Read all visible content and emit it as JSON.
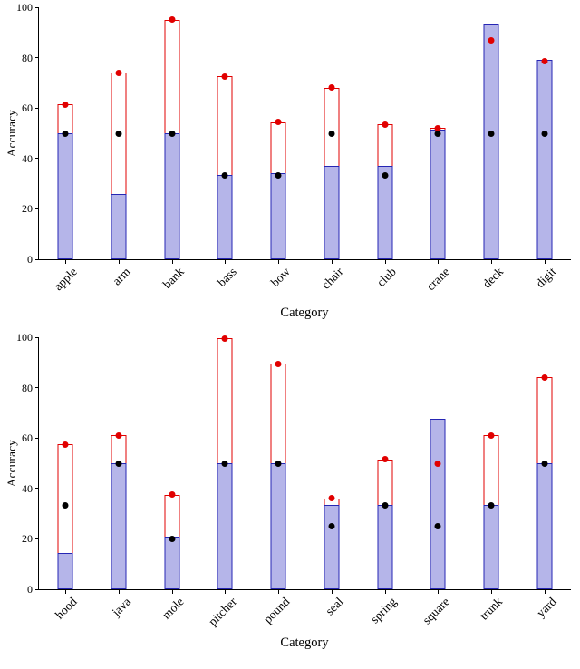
{
  "colors": {
    "bar_fill": "#b5b5e9",
    "bar_border": "#2626b4",
    "highlight": "#e10000",
    "marker": "#000000",
    "axis": "#000000"
  },
  "chart_data": [
    {
      "type": "bar",
      "title": "",
      "xlabel": "Category",
      "ylabel": "Accuracy",
      "ylim": [
        0,
        100
      ],
      "yticks": [
        0,
        20,
        40,
        60,
        80,
        100
      ],
      "grid": false,
      "legend": false,
      "categories": [
        "apple",
        "arm",
        "bank",
        "bass",
        "bow",
        "chair",
        "club",
        "crane",
        "deck",
        "digit"
      ],
      "series": [
        {
          "name": "red-outline-bar",
          "style": "white fill, red border",
          "values": [
            61.5,
            74,
            95,
            72.5,
            54.5,
            68,
            53.5,
            52,
            87,
            78.5
          ]
        },
        {
          "name": "blue-filled-bar",
          "style": "light blue fill, blue border",
          "values": [
            50,
            26,
            50,
            33.5,
            34,
            37,
            37,
            51.5,
            93,
            79
          ]
        },
        {
          "name": "black-dot-marker",
          "style": "black filled circle",
          "values": [
            50,
            50,
            50,
            33.3,
            33.3,
            50,
            33.3,
            50,
            50,
            50
          ]
        },
        {
          "name": "red-dot-marker",
          "style": "red filled circle",
          "values": [
            61.5,
            74,
            95,
            72.5,
            54.5,
            68,
            53.5,
            52,
            87,
            78.5
          ]
        }
      ]
    },
    {
      "type": "bar",
      "title": "",
      "xlabel": "Category",
      "ylabel": "Accuracy",
      "ylim": [
        0,
        100
      ],
      "yticks": [
        0,
        20,
        40,
        60,
        80,
        100
      ],
      "grid": false,
      "legend": false,
      "categories": [
        "hood",
        "java",
        "mole",
        "pitcher",
        "pound",
        "seal",
        "spring",
        "square",
        "trunk",
        "yard"
      ],
      "series": [
        {
          "name": "red-outline-bar",
          "style": "white fill, red border",
          "values": [
            57.5,
            61,
            37.5,
            99.5,
            89.5,
            36,
            51.5,
            50,
            61,
            84
          ]
        },
        {
          "name": "blue-filled-bar",
          "style": "light blue fill, blue border",
          "values": [
            14.5,
            50,
            21,
            50,
            50,
            33.5,
            33.5,
            67.5,
            33.5,
            50
          ]
        },
        {
          "name": "black-dot-marker",
          "style": "black filled circle",
          "values": [
            33.3,
            50,
            20,
            50,
            50,
            25,
            33.3,
            25,
            33.3,
            50
          ]
        },
        {
          "name": "red-dot-marker",
          "style": "red filled circle",
          "values": [
            57.5,
            61,
            37.5,
            99.5,
            89.5,
            36,
            51.5,
            50,
            61,
            84
          ]
        }
      ]
    }
  ]
}
